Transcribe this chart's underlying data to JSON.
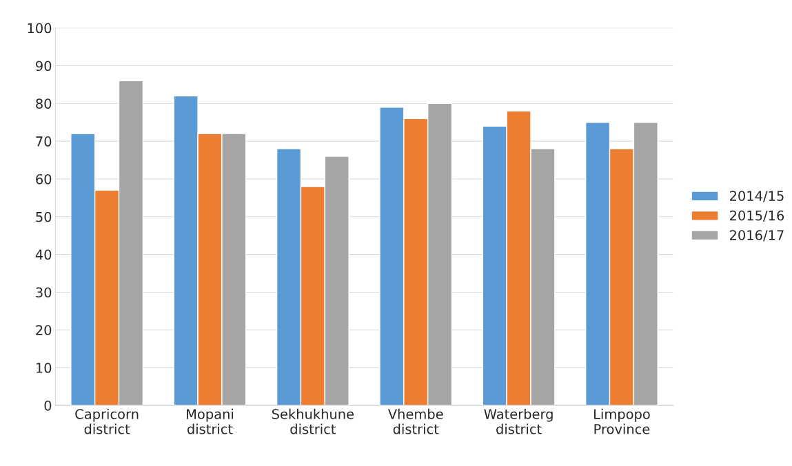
{
  "chart_data": {
    "type": "bar",
    "categories": [
      "Capricorn\ndistrict",
      "Mopani\ndistrict",
      "Sekhukhune\ndistrict",
      "Vhembe\ndistrict",
      "Waterberg\ndistrict",
      "Limpopo\nProvince"
    ],
    "series": [
      {
        "name": "2014/15",
        "color": "#5b9bd5",
        "values": [
          72,
          82,
          68,
          79,
          74,
          75
        ]
      },
      {
        "name": "2015/16",
        "color": "#ed7d31",
        "values": [
          57,
          72,
          58,
          76,
          78,
          68
        ]
      },
      {
        "name": "2016/17",
        "color": "#a5a5a5",
        "values": [
          86,
          72,
          66,
          80,
          68,
          75
        ]
      }
    ],
    "ylim": [
      0,
      100
    ],
    "yticks": [
      0,
      10,
      20,
      30,
      40,
      50,
      60,
      70,
      80,
      90,
      100
    ],
    "grid": "y",
    "legend": "right"
  }
}
